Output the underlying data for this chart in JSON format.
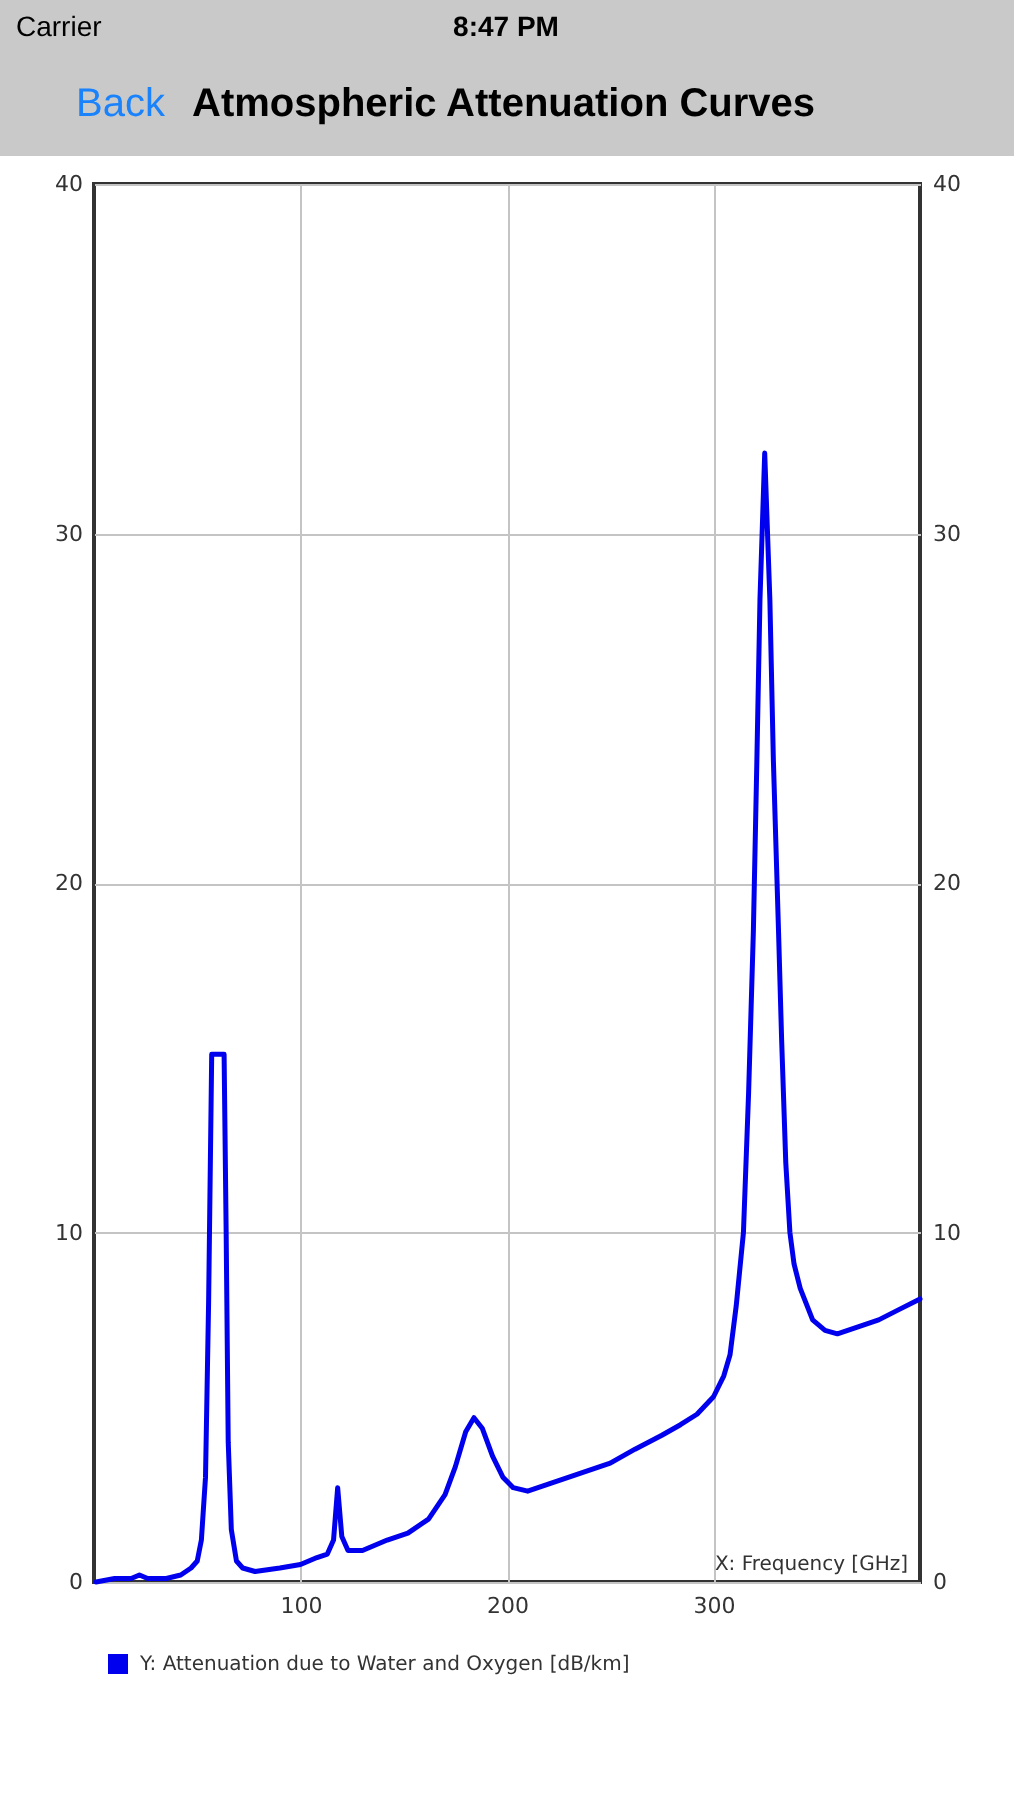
{
  "chart_data": {
    "type": "line",
    "title": "Atmospheric Attenuation Curves",
    "xlabel": "X: Frequency [GHz]",
    "annotations": [
      "Carrier",
      "8:47 PM",
      "Back"
    ],
    "series": [
      {
        "name": "Y: Attenuation due to Water and Oxygen [dB/km]",
        "color": "#0000ee",
        "x": [
          1,
          10,
          18,
          22,
          26,
          35,
          42,
          47,
          50,
          52,
          54,
          55.5,
          57,
          63,
          64,
          65,
          66.5,
          69,
          72,
          78,
          90,
          100,
          108,
          113,
          116,
          118,
          120,
          123,
          130,
          142,
          152,
          162,
          170,
          175,
          180,
          184,
          188,
          193,
          198,
          203,
          210,
          220,
          235,
          250,
          262,
          275,
          284,
          292,
          300,
          305,
          308,
          311,
          314.5,
          317,
          319.3,
          321,
          322.5,
          324.8,
          327.3,
          329,
          331.5,
          333,
          335,
          337,
          339,
          342,
          348,
          354,
          360,
          370,
          380,
          390,
          400
        ],
        "values": [
          0.0,
          0.1,
          0.1,
          0.2,
          0.1,
          0.1,
          0.2,
          0.4,
          0.6,
          1.2,
          3.0,
          8.0,
          15.1,
          15.1,
          10.0,
          4.0,
          1.5,
          0.6,
          0.4,
          0.3,
          0.4,
          0.5,
          0.7,
          0.8,
          1.2,
          2.7,
          1.3,
          0.9,
          0.9,
          1.2,
          1.4,
          1.8,
          2.5,
          3.3,
          4.3,
          4.7,
          4.4,
          3.6,
          3.0,
          2.7,
          2.6,
          2.8,
          3.1,
          3.4,
          3.8,
          4.2,
          4.5,
          4.8,
          5.3,
          5.9,
          6.5,
          7.9,
          10.0,
          14.0,
          18.6,
          23.5,
          28.1,
          32.3,
          28.1,
          23.5,
          18.6,
          15.5,
          12.0,
          10.0,
          9.1,
          8.4,
          7.5,
          7.2,
          7.1,
          7.3,
          7.5,
          7.8,
          8.1
        ]
      }
    ],
    "xlim": [
      0,
      400
    ],
    "xticks": [
      100,
      200,
      300
    ],
    "ylim": [
      0,
      40
    ],
    "yticks": [
      0,
      10,
      20,
      30,
      40
    ],
    "y2lim": [
      0,
      40
    ],
    "y2ticks": [
      0,
      10,
      20,
      30,
      40
    ],
    "grid": true,
    "legend": "bottom"
  }
}
